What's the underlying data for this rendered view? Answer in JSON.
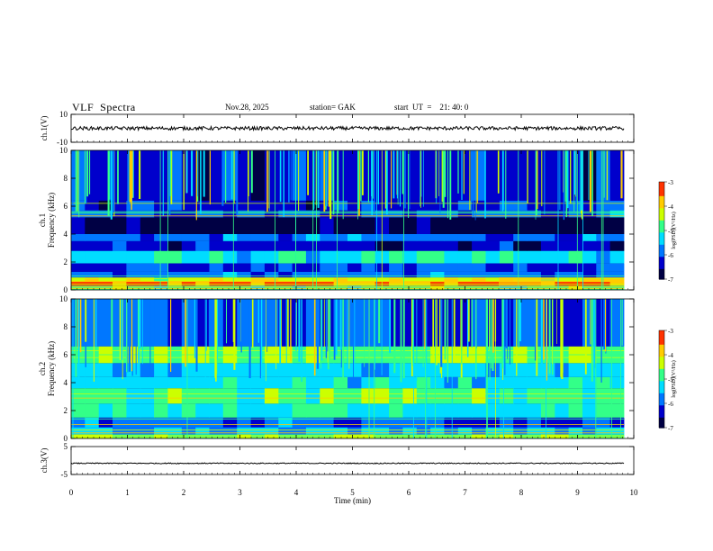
{
  "header": {
    "title": "VLF  Spectra",
    "date": "Nov.28, 2025",
    "station": "station= GAK",
    "start_ut": "start  UT  =    21: 40: 0"
  },
  "colors": {
    "background": "#ffffff",
    "axis": "#000000",
    "colormap": [
      "#000044",
      "#0000cc",
      "#0077ff",
      "#00ddff",
      "#33ff88",
      "#ccff00",
      "#ffcc00",
      "#ff3300",
      "#ffffff"
    ]
  },
  "chart_data": [
    {
      "type": "line",
      "id": "ch1-waveform",
      "ylabel": "ch.1(V)",
      "ylim": [
        -10,
        10
      ],
      "yticks": [
        "10",
        "-10"
      ],
      "x_range": [
        0,
        9.8
      ],
      "baseline": 0
    },
    {
      "type": "heatmap",
      "id": "ch1-spectrogram",
      "ylabel": [
        "ch.1",
        "Frequency  (kHz)"
      ],
      "ylim": [
        0,
        10
      ],
      "yticks": [
        "0",
        "2",
        "4",
        "6",
        "8",
        "10"
      ],
      "x_range": [
        0,
        9.8
      ],
      "colorbar": {
        "label": "log(PSD)(V²/Hz)",
        "range": [
          -7,
          -3
        ],
        "ticks": [
          "-3",
          "-4",
          "-5",
          "-6",
          "-7"
        ]
      }
    },
    {
      "type": "heatmap",
      "id": "ch2-spectrogram",
      "ylabel": [
        "ch.2",
        "Frequency  (kHz)"
      ],
      "ylim": [
        0,
        10
      ],
      "yticks": [
        "0",
        "2",
        "4",
        "6",
        "8",
        "10"
      ],
      "x_range": [
        0,
        9.8
      ],
      "colorbar": {
        "label": "log(PSD)(V²/Hz)",
        "range": [
          -7,
          -3
        ],
        "ticks": [
          "-3",
          "-4",
          "-5",
          "-6",
          "-7"
        ]
      }
    },
    {
      "type": "line",
      "id": "ch3-waveform",
      "ylabel": "ch.3(V)",
      "ylim": [
        -5,
        5
      ],
      "yticks": [
        "5",
        "-5"
      ],
      "x_range": [
        0,
        9.8
      ],
      "baseline": -1
    }
  ],
  "x_axis": {
    "label": "Time  (min)",
    "range": [
      0,
      10
    ],
    "ticks": [
      "0",
      "1",
      "2",
      "3",
      "4",
      "5",
      "6",
      "7",
      "8",
      "9",
      "10"
    ]
  }
}
